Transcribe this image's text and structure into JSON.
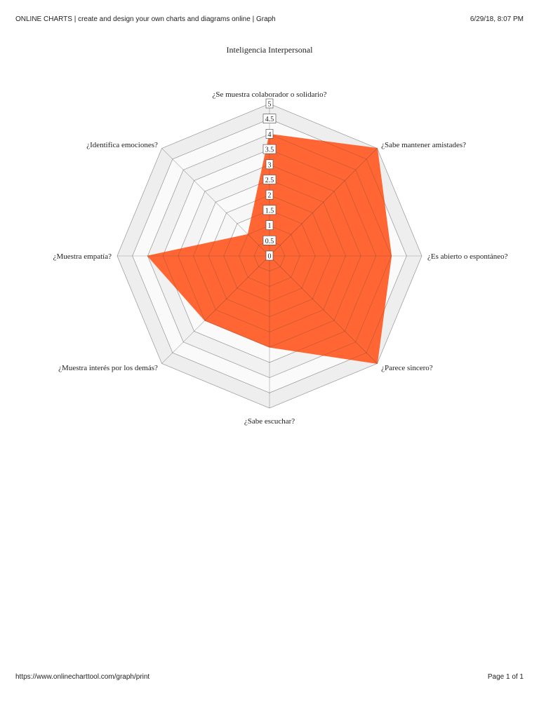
{
  "print_header": {
    "page_title": "ONLINE CHARTS | create and design your own charts and diagrams online | Graph",
    "datetime": "6/29/18, 8:07 PM"
  },
  "print_footer": {
    "url": "https://www.onlinecharttool.com/graph/print",
    "page_number": "Page 1 of 1"
  },
  "chart_data": {
    "type": "radar",
    "title": "Inteligencia Interpersonal",
    "categories": [
      "¿Se muestra colaborador o solidario?",
      "¿Sabe mantener amistades?",
      "¿Es abierto o espontáneo?",
      "¿Parece sincero?",
      "¿Sabe escuchar?",
      "¿Muestra interés por los demás?",
      "¿Muestra empatía?",
      "¿Identifica emociones?"
    ],
    "series": [
      {
        "values": [
          4,
          5,
          4,
          5,
          3,
          3,
          4,
          1
        ],
        "color": "#ff6633"
      }
    ],
    "rlim": [
      0,
      5
    ],
    "ticks": [
      "0",
      "0.5",
      "1",
      "1.5",
      "2",
      "2.5",
      "3",
      "3.5",
      "4",
      "4.5",
      "5"
    ],
    "grid": true
  }
}
